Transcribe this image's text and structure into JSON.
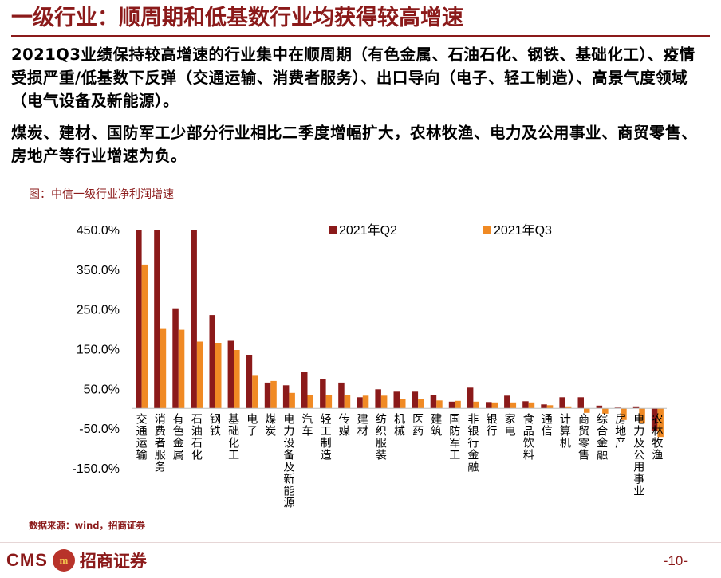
{
  "header": {
    "title": "一级行业：顺周期和低基数行业均获得较高增速"
  },
  "paragraphs": {
    "p1": "2021Q3业绩保持较高增速的行业集中在顺周期（有色金属、石油石化、钢铁、基础化工）、疫情受损严重/低基数下反弹（交通运输、消费者服务）、出口导向（电子、轻工制造）、高景气度领域（电气设备及新能源）。",
    "p2": "煤炭、建材、国防军工少部分行业相比二季度增幅扩大，农林牧渔、电力及公用事业、商贸零售、房地产等行业增速为负。"
  },
  "figure": {
    "caption": "图：中信一级行业净利润增速",
    "source": "数据来源：wind，招商证券"
  },
  "footer": {
    "logo_text": "CMS",
    "logo_mark": "m",
    "logo_cn": "招商证券",
    "page": "-10-"
  },
  "colors": {
    "q2": "#8B1A1A",
    "q3": "#F08A24",
    "accent": "#8B1A1A"
  },
  "chart_data": {
    "type": "bar",
    "ylim": [
      -150,
      450
    ],
    "yticks": [
      -150,
      -50,
      50,
      150,
      250,
      350,
      450
    ],
    "ytick_labels": [
      "-150.0%",
      "-50.0%",
      "50.0%",
      "150.0%",
      "250.0%",
      "350.0%",
      "450.0%"
    ],
    "legend_position": "top",
    "grid": false,
    "categories": [
      "交通运输",
      "消费者服务",
      "有色金属",
      "石油石化",
      "钢铁",
      "基础化工",
      "电子",
      "煤炭",
      "电力设备及新能源",
      "汽车",
      "轻工制造",
      "传媒",
      "建材",
      "纺织服装",
      "机械",
      "医药",
      "建筑",
      "国防军工",
      "非银行金融",
      "银行",
      "家电",
      "食品饮料",
      "通信",
      "计算机",
      "商贸零售",
      "综合金融",
      "房地产",
      "电力及公用事业",
      "农林牧渔"
    ],
    "series": [
      {
        "name": "2021年Q2",
        "values": [
          450,
          450,
          252,
          450,
          235,
          170,
          135,
          65,
          58,
          92,
          73,
          65,
          28,
          48,
          42,
          42,
          33,
          17,
          52,
          16,
          32,
          18,
          10,
          28,
          28,
          7,
          2,
          5,
          -57
        ]
      },
      {
        "name": "2021年Q3",
        "values": [
          362,
          200,
          198,
          168,
          165,
          147,
          84,
          69,
          39,
          34,
          34,
          34,
          32,
          32,
          24,
          24,
          20,
          19,
          17,
          15,
          15,
          15,
          8,
          5,
          -11,
          -13,
          -29,
          -38,
          -72
        ]
      }
    ]
  }
}
